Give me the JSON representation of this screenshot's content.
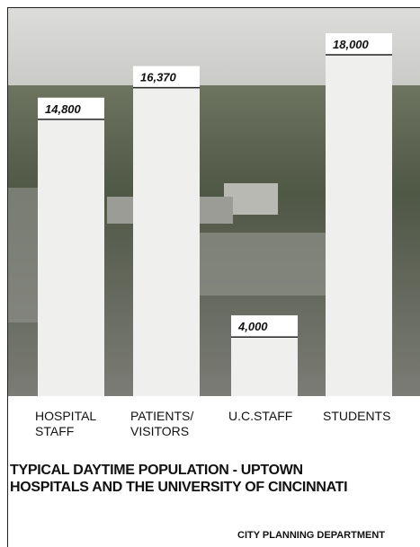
{
  "chart_data": {
    "type": "bar",
    "title": [
      "TYPICAL DAYTIME POPULATION - UPTOWN",
      "HOSPITALS AND THE UNIVERSITY OF CINCINNATI"
    ],
    "categories": [
      "HOSPITAL STAFF",
      "PATIENTS/ VISITORS",
      "U.C.STAFF",
      "STUDENTS"
    ],
    "values": [
      14800,
      16370,
      4000,
      18000
    ],
    "value_labels": [
      "14,800",
      "16,370",
      "4,000",
      "18,000"
    ],
    "source": "CITY PLANNING DEPARTMENT"
  }
}
